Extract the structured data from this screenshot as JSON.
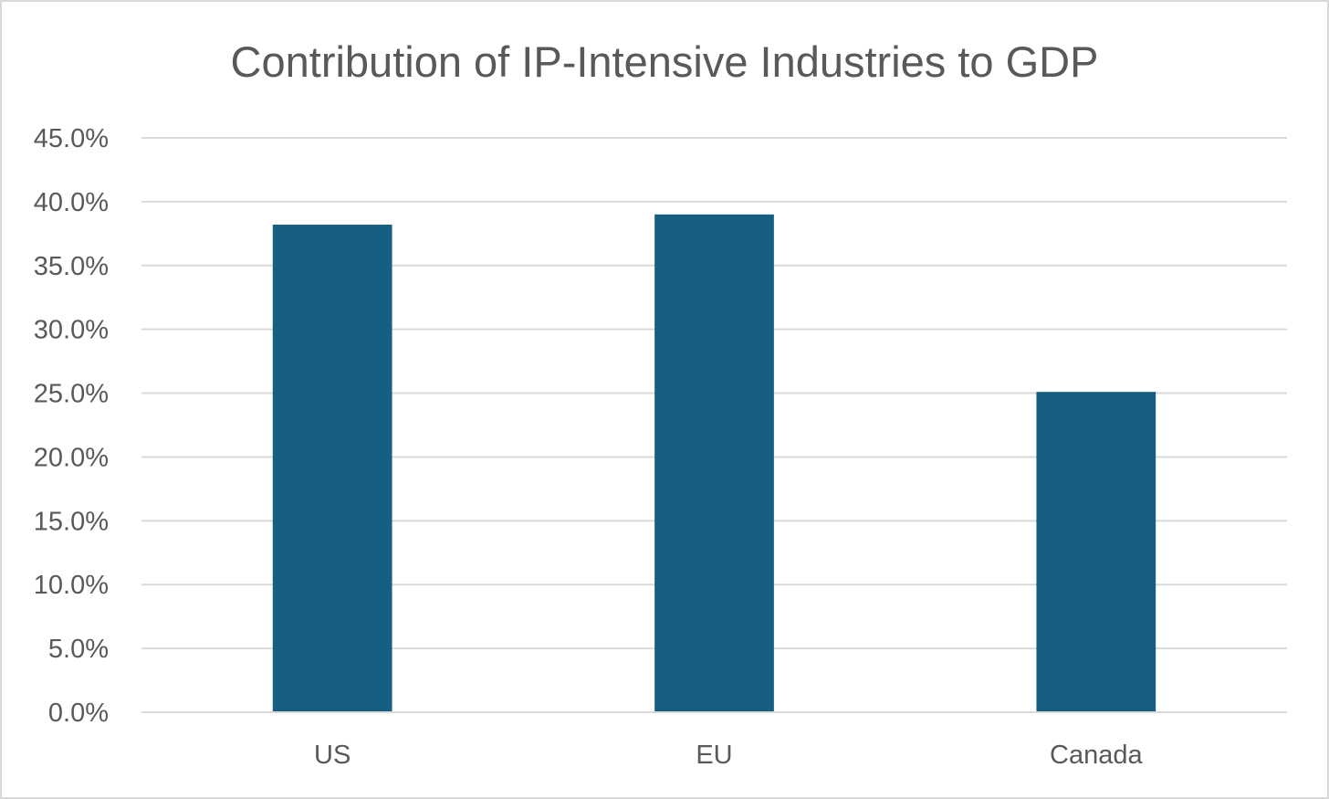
{
  "chart_data": {
    "type": "bar",
    "title": "Contribution of IP-Intensive Industries to GDP",
    "categories": [
      "US",
      "EU",
      "Canada"
    ],
    "values": [
      38.2,
      39.0,
      25.1
    ],
    "ylim": [
      0,
      45
    ],
    "y_ticks": [
      0,
      5,
      10,
      15,
      20,
      25,
      30,
      35,
      40,
      45
    ],
    "y_tick_labels": [
      "0.0%",
      "5.0%",
      "10.0%",
      "15.0%",
      "20.0%",
      "25.0%",
      "30.0%",
      "35.0%",
      "40.0%",
      "45.0%"
    ],
    "xlabel": "",
    "ylabel": "",
    "grid": true,
    "legend": "none",
    "bar_color": "#175f80"
  }
}
